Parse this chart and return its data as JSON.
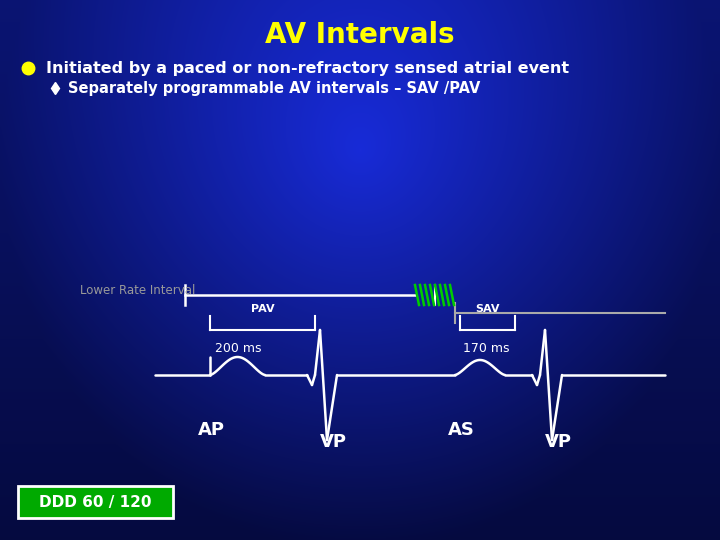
{
  "title": "AV Intervals",
  "title_color": "#FFFF00",
  "title_fontsize": 20,
  "bullet1": "Initiated by a paced or non-refractory sensed atrial event",
  "bullet1_color": "#FFFFFF",
  "bullet1_marker_color": "#FFFF00",
  "bullet2": "Separately programmable AV intervals – SAV /PAV",
  "bullet2_color": "#FFFFFF",
  "lower_rate_label": "Lower Rate Interval",
  "lower_rate_color": "#999999",
  "pav_label": "PAV",
  "sav_label": "SAV",
  "ms_200": "200 ms",
  "ms_170": "170 ms",
  "ap_label": "AP",
  "vp1_label": "VP",
  "as_label": "AS",
  "vp2_label": "VP",
  "ddd_label": "DDD 60 / 120",
  "ddd_bg": "#00AA00",
  "ddd_color": "#FFFFFF",
  "hatch_color": "#00CC00",
  "lri_color": "#AAAAAA"
}
